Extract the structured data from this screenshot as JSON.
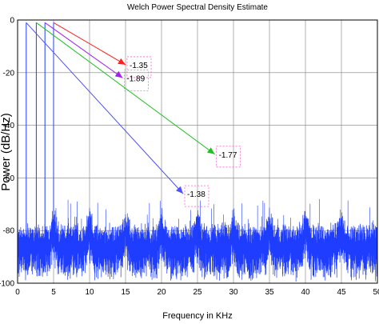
{
  "chart_data": {
    "type": "line",
    "title": "Welch Power Spectral Density Estimate",
    "xlabel": "Frequency in KHz",
    "ylabel": "Power (dB/Hz)",
    "xlim": [
      0,
      50
    ],
    "ylim": [
      -100,
      0
    ],
    "xticks": [
      0,
      5,
      10,
      15,
      20,
      25,
      30,
      35,
      40,
      45,
      50
    ],
    "yticks": [
      0,
      -20,
      -40,
      -60,
      -80,
      -100
    ],
    "grid": true,
    "colors": {
      "spectrum": "#1f3dff",
      "grid": "#7f7f7f",
      "arrow_red": "#ff2020",
      "arrow_purple": "#a020f0",
      "arrow_green": "#20c020",
      "arrow_blue": "#5050ff",
      "box_pink": "#ff66cc"
    },
    "spectrum": {
      "noise_floor_db": -85,
      "floor_bumps_khz": [
        5,
        10,
        15,
        20,
        25,
        30,
        35,
        40,
        45
      ],
      "peaks": [
        {
          "x": 1.0,
          "y": -45
        },
        {
          "x": 2.2,
          "y": -48
        },
        {
          "x": 3.5,
          "y": -50
        },
        {
          "x": 5.0,
          "y": -56
        }
      ],
      "spikes": [
        {
          "x": 1.2,
          "y": -1
        },
        {
          "x": 2.6,
          "y": -1
        },
        {
          "x": 3.8,
          "y": -1
        },
        {
          "x": 5.0,
          "y": -1
        }
      ]
    },
    "annotations": [
      {
        "label": "-1.35",
        "from": [
          5.0,
          -1
        ],
        "to": [
          15.0,
          -17
        ],
        "color": "#ff2020"
      },
      {
        "label": "-1.89",
        "from": [
          3.8,
          -1
        ],
        "to": [
          14.6,
          -22
        ],
        "color": "#a020f0"
      },
      {
        "label": "-1.77",
        "from": [
          2.6,
          -1
        ],
        "to": [
          27.4,
          -51
        ],
        "color": "#20c020"
      },
      {
        "label": "-1.38",
        "from": [
          1.2,
          -1
        ],
        "to": [
          23.0,
          -66
        ],
        "color": "#5050ff"
      }
    ]
  }
}
